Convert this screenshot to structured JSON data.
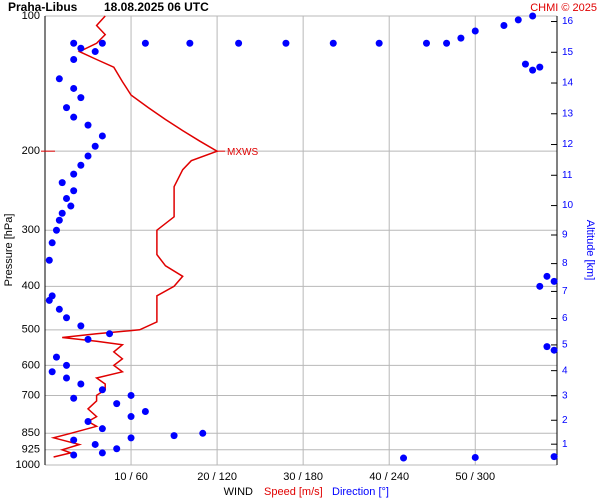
{
  "chart_data": {
    "type": "wind-profile",
    "title": "Praha-Libus",
    "subtitle": "18.08.2025 06 UTC",
    "credit": "CHMI © 2025",
    "y_label": "Pressure [hPa]",
    "y2_label": "Altitude [km]",
    "x_label": "WIND",
    "speed_label": "Speed [m/s]",
    "direction_label": "Direction [°]",
    "annotation": "MXWS",
    "annotation_pressure": 200,
    "ylim": [
      100,
      1000
    ],
    "y_log": true,
    "yticks": [
      100,
      200,
      300,
      400,
      500,
      600,
      700,
      850,
      925,
      1000
    ],
    "xlim": [
      0,
      59.5
    ],
    "xticks": [
      {
        "value": 10,
        "label": "10 / 60"
      },
      {
        "value": 20,
        "label": "20 / 120"
      },
      {
        "value": 30,
        "label": "30 / 180"
      },
      {
        "value": 40,
        "label": "40 / 240"
      },
      {
        "value": 50,
        "label": "50 / 300"
      }
    ],
    "x2lim": [
      0,
      357
    ],
    "y2ticks": [
      1,
      2,
      3,
      4,
      5,
      6,
      7,
      8,
      9,
      10,
      11,
      12,
      13,
      14,
      15,
      16
    ],
    "grid": true,
    "series": [
      {
        "name": "Speed",
        "color": "#e00000",
        "pressure": [
          960,
          940,
          925,
          900,
          870,
          850,
          820,
          800,
          780,
          750,
          720,
          700,
          680,
          660,
          640,
          620,
          600,
          580,
          560,
          540,
          530,
          520,
          510,
          500,
          480,
          460,
          440,
          420,
          400,
          380,
          360,
          340,
          320,
          300,
          280,
          260,
          240,
          220,
          210,
          200,
          190,
          180,
          170,
          160,
          150,
          140,
          130,
          125,
          120,
          115,
          110,
          105,
          100
        ],
        "values": [
          1,
          3,
          2,
          4,
          1,
          3,
          6,
          5,
          6,
          5,
          6,
          6,
          7,
          7,
          6,
          9,
          8,
          9,
          8,
          9,
          6,
          2,
          6,
          11,
          13,
          13,
          13,
          13,
          15,
          16,
          14,
          13,
          13,
          13,
          15,
          15,
          15,
          16,
          17,
          20,
          18,
          16,
          14,
          12,
          10,
          9,
          8,
          6,
          4,
          6,
          7,
          6,
          7
        ]
      },
      {
        "name": "Direction",
        "color": "#0000ff",
        "axis": "x2",
        "pressure": [
          100,
          102,
          105,
          108,
          112,
          115,
          115,
          115,
          115,
          115,
          115,
          115,
          115,
          115,
          115,
          118,
          120,
          125,
          128,
          130,
          132,
          138,
          145,
          152,
          160,
          168,
          175,
          185,
          195,
          205,
          215,
          225,
          235,
          245,
          255,
          265,
          275,
          285,
          300,
          320,
          350,
          380,
          390,
          400,
          420,
          430,
          450,
          470,
          490,
          510,
          525,
          545,
          555,
          575,
          600,
          620,
          640,
          660,
          680,
          700,
          710,
          730,
          760,
          780,
          800,
          830,
          850,
          860,
          870,
          880,
          900,
          920,
          940,
          950,
          965,
          962,
          958
        ],
        "values": [
          340,
          330,
          320,
          300,
          290,
          280,
          266,
          233,
          201,
          168,
          135,
          101,
          70,
          40,
          20,
          25,
          35,
          20,
          335,
          345,
          340,
          10,
          20,
          25,
          15,
          20,
          30,
          40,
          35,
          30,
          25,
          20,
          12,
          20,
          15,
          18,
          12,
          10,
          8,
          5,
          3,
          350,
          355,
          345,
          5,
          3,
          10,
          15,
          25,
          45,
          30,
          350,
          355,
          8,
          15,
          5,
          15,
          25,
          40,
          60,
          20,
          50,
          70,
          60,
          30,
          40,
          110,
          90,
          60,
          20,
          35,
          50,
          40,
          20,
          250,
          300,
          355
        ]
      }
    ]
  }
}
